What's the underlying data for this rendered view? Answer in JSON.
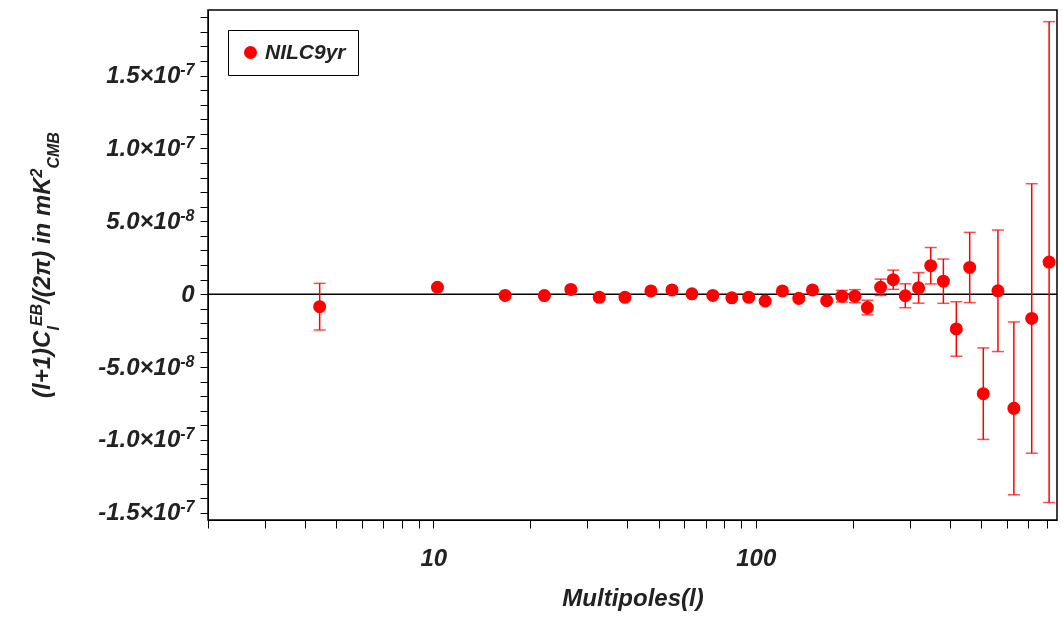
{
  "chart_data": {
    "type": "scatter",
    "xlabel": "Multipoles(l)",
    "ylabel": "(l+1)C$_{l}$$^{EB}$/(2π) in mK$^{2}$$_{CMB}$",
    "log": "x",
    "xlim": [
      2,
      860
    ],
    "xticks": [
      {
        "value": 2,
        "label": null
      },
      {
        "value": 3,
        "label": null
      },
      {
        "value": 4,
        "label": null
      },
      {
        "value": 5,
        "label": null
      },
      {
        "value": 6,
        "label": null
      },
      {
        "value": 7,
        "label": null
      },
      {
        "value": 8,
        "label": null
      },
      {
        "value": 9,
        "label": null
      },
      10,
      {
        "value": 20,
        "label": null
      },
      {
        "value": 30,
        "label": null
      },
      {
        "value": 40,
        "label": null
      },
      {
        "value": 50,
        "label": null
      },
      {
        "value": 60,
        "label": null
      },
      {
        "value": 70,
        "label": null
      },
      {
        "value": 80,
        "label": null
      },
      {
        "value": 90,
        "label": null
      },
      100,
      {
        "value": 200,
        "label": null
      },
      {
        "value": 300,
        "label": null
      },
      {
        "value": 400,
        "label": null
      },
      {
        "value": 500,
        "label": null
      },
      {
        "value": 600,
        "label": null
      },
      {
        "value": 700,
        "label": null
      },
      {
        "value": 800,
        "label": null
      }
    ],
    "ylim": [
      -1.55e-07,
      1.95e-07
    ],
    "yticks": [
      {
        "value": -1.5e-07,
        "label": "-1.5×10$^{-7}$"
      },
      {
        "value": -1.4e-07,
        "label": null
      },
      {
        "value": -1.3e-07,
        "label": null
      },
      {
        "value": -1.2e-07,
        "label": null
      },
      {
        "value": -1.1e-07,
        "label": null
      },
      {
        "value": -1e-07,
        "label": "-1.0×10$^{-7}$"
      },
      {
        "value": -9e-08,
        "label": null
      },
      {
        "value": -8e-08,
        "label": null
      },
      {
        "value": -7e-08,
        "label": null
      },
      {
        "value": -6e-08,
        "label": null
      },
      {
        "value": -5e-08,
        "label": "-5.0×10$^{-8}$"
      },
      {
        "value": -4e-08,
        "label": null
      },
      {
        "value": -3e-08,
        "label": null
      },
      {
        "value": -2e-08,
        "label": null
      },
      {
        "value": -1e-08,
        "label": null
      },
      0,
      {
        "value": 1e-08,
        "label": null
      },
      {
        "value": 2e-08,
        "label": null
      },
      {
        "value": 3e-08,
        "label": null
      },
      {
        "value": 4e-08,
        "label": null
      },
      {
        "value": 5e-08,
        "label": "5.0×10$^{-8}$"
      },
      {
        "value": 6e-08,
        "label": null
      },
      {
        "value": 7e-08,
        "label": null
      },
      {
        "value": 8e-08,
        "label": null
      },
      {
        "value": 9e-08,
        "label": null
      },
      {
        "value": 1e-07,
        "label": "1.0×10$^{-7}$"
      },
      {
        "value": 1.1e-07,
        "label": null
      },
      {
        "value": 1.2e-07,
        "label": null
      },
      {
        "value": 1.3e-07,
        "label": null
      },
      {
        "value": 1.4e-07,
        "label": null
      },
      {
        "value": 1.5e-07,
        "label": "1.5×10$^{-7}$"
      },
      {
        "value": 1.6e-07,
        "label": null
      },
      {
        "value": 1.7e-07,
        "label": null
      },
      {
        "value": 1.8e-07,
        "label": null
      },
      {
        "value": 1.9e-07,
        "label": null
      }
    ],
    "legend": "top left",
    "marker": "circle",
    "ref_lines": [
      {
        "axis": "y",
        "value": 0,
        "color": "#000000"
      }
    ],
    "x": [
      4.44,
      10.3,
      16.7,
      22.1,
      26.7,
      32.7,
      39.3,
      47.3,
      55.0,
      63.4,
      73.6,
      84.3,
      95.1,
      107,
      121,
      136,
      150,
      166,
      185,
      203,
      222,
      244,
      267,
      291,
      320,
      349,
      382,
      419,
      461,
      508,
      564,
      632,
      718,
      813
    ],
    "series": [
      {
        "name": "NILC9yr",
        "color": "#ff0000",
        "values": [
          -8.6e-09,
          4.7e-09,
          -9e-10,
          -1e-09,
          3.2e-09,
          -2.2e-09,
          -2.2e-09,
          2.2e-09,
          2.9e-09,
          2e-10,
          -9e-10,
          -2.5e-09,
          -2.2e-09,
          -4.7e-09,
          2.2e-09,
          -2.9e-09,
          2.9e-09,
          -4.5e-09,
          -1.4e-09,
          -1.4e-09,
          -9.2e-09,
          4.7e-09,
          9.9e-09,
          -1.1e-09,
          4.3e-09,
          1.95e-08,
          8.9e-09,
          -2.39e-08,
          1.83e-08,
          -6.83e-08,
          2.3e-09,
          -7.84e-08,
          -1.67e-08,
          2.2e-08
        ],
        "errors": [
          1.6e-08,
          null,
          null,
          null,
          null,
          null,
          null,
          null,
          null,
          null,
          null,
          null,
          null,
          null,
          null,
          null,
          null,
          null,
          4e-09,
          4.5e-09,
          5e-09,
          5.6e-09,
          6.6e-09,
          8.2e-09,
          1.05e-08,
          1.25e-08,
          1.52e-08,
          1.87e-08,
          2.41e-08,
          3.14e-08,
          4.17e-08,
          5.93e-08,
          9.25e-08,
          1.65e-07
        ]
      }
    ]
  }
}
